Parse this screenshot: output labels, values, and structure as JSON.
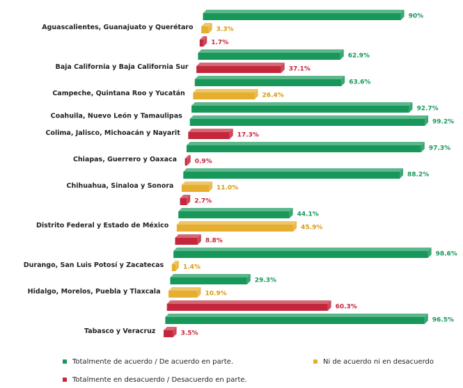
{
  "chart_data": {
    "type": "bar3d",
    "categories": [
      "Aguascalientes, Guanajuato y Querétaro",
      "Baja California y Baja California Sur",
      "Campeche, Quintana Roo y Yucatán",
      "Coahuila, Nuevo León y Tamaulipas",
      "Colima, Jalisco, Michoacán y Nayarit",
      "Chiapas, Guerrero y Oaxaca",
      "Chihuahua, Sinaloa y Sonora",
      "Distrito Federal y Estado de México",
      "Durango, San Luis Potosí y Zacatecas",
      "Hidalgo, Morelos, Puebla y Tlaxcala",
      "Tabasco y Veracruz"
    ],
    "series": [
      {
        "name": "Totalmente de acuerdo / De acuerdo en parte.",
        "color": "#17985a",
        "values": [
          90,
          62.9,
          63.6,
          92.7,
          99.2,
          97.3,
          88.2,
          44.1,
          98.6,
          29.3,
          96.5
        ],
        "value_labels": [
          "90%",
          "62.9%",
          "63.6%",
          "92.7%",
          "99.2%",
          "97.3%",
          "88.2%",
          "44.1%",
          "98.6%",
          "29.3%",
          "96.5%"
        ]
      },
      {
        "name": "Ni de acuerdo ni en desacuerdo",
        "color": "#e6ae2e",
        "values": [
          3.3,
          null,
          26.4,
          null,
          null,
          null,
          11.0,
          45.9,
          1.4,
          10.9,
          null
        ],
        "value_labels": [
          "3.3%",
          null,
          "26.4%",
          null,
          null,
          null,
          "11.0%",
          "45.9%",
          "1.4%",
          "10.9%",
          null
        ]
      },
      {
        "name": "Totalmente en desacuerdo / Desacuerdo en parte.",
        "color": "#c4273b",
        "values": [
          1.7,
          37.1,
          null,
          null,
          17.3,
          0.9,
          2.7,
          8.8,
          null,
          60.3,
          3.5
        ],
        "value_labels": [
          "1.7%",
          "37.1%",
          null,
          null,
          "17.3%",
          "0.9%",
          "2.7%",
          "8.8%",
          null,
          "60.3%",
          "3.5%"
        ]
      }
    ]
  }
}
